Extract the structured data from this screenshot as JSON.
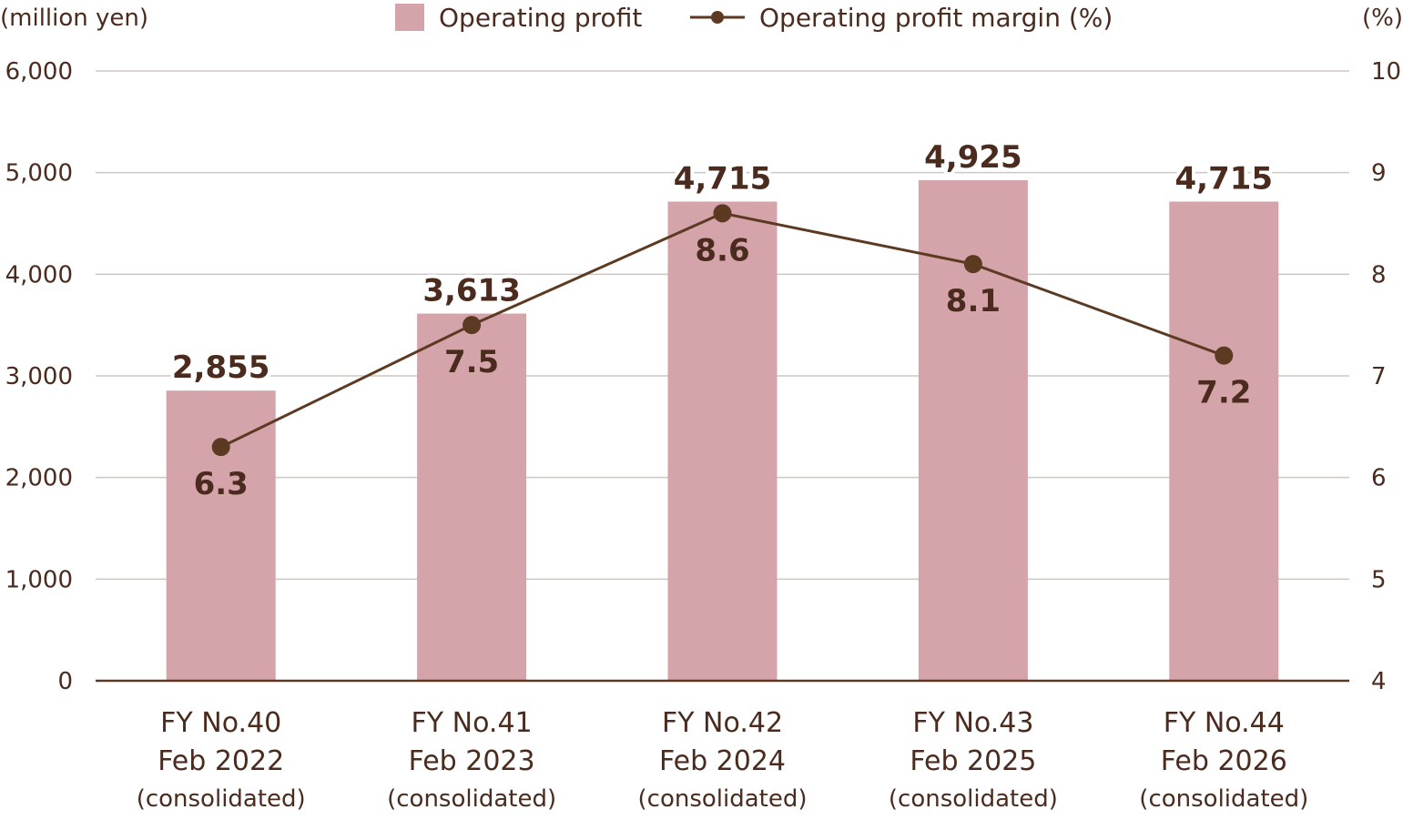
{
  "chart_data": {
    "type": "bar",
    "left_axis_unit": "(million yen)",
    "right_axis_unit": "(%)",
    "categories": [
      [
        "FY No.40",
        "Feb 2022",
        "(consolidated)"
      ],
      [
        "FY No.41",
        "Feb 2023",
        "(consolidated)"
      ],
      [
        "FY No.42",
        "Feb 2024",
        "(consolidated)"
      ],
      [
        "FY No.43",
        "Feb 2025",
        "(consolidated)"
      ],
      [
        "FY No.44",
        "Feb 2026",
        "(consolidated)"
      ]
    ],
    "series": [
      {
        "name": "Operating profit",
        "type": "bar",
        "axis": "left",
        "values": [
          2855,
          3613,
          4715,
          4925,
          4715
        ],
        "labels": [
          "2,855",
          "3,613",
          "4,715",
          "4,925",
          "4,715"
        ],
        "color": "#d4a4aa"
      },
      {
        "name": "Operating profit margin (%)",
        "type": "line",
        "axis": "right",
        "values": [
          6.3,
          7.5,
          8.6,
          8.1,
          7.2
        ],
        "labels": [
          "6.3",
          "7.5",
          "8.6",
          "8.1",
          "7.2"
        ],
        "color": "#5c3a22"
      }
    ],
    "left_axis": {
      "ylim": [
        0,
        6000
      ],
      "ticks": [
        0,
        1000,
        2000,
        3000,
        4000,
        5000,
        6000
      ],
      "tick_labels": [
        "0",
        "1,000",
        "2,000",
        "3,000",
        "4,000",
        "5,000",
        "6,000"
      ]
    },
    "right_axis": {
      "ylim": [
        4,
        10
      ],
      "ticks": [
        4,
        5,
        6,
        7,
        8,
        9,
        10
      ],
      "tick_labels": [
        "4",
        "5",
        "6",
        "7",
        "8",
        "9",
        "10"
      ]
    },
    "grid": true,
    "legend_position": "top-center",
    "colors": {
      "bar": "#d4a4aa",
      "line": "#5c3a22",
      "text": "#4a2b1e",
      "grid": "#cfc5c1",
      "baseline": "#5c3a22"
    }
  }
}
